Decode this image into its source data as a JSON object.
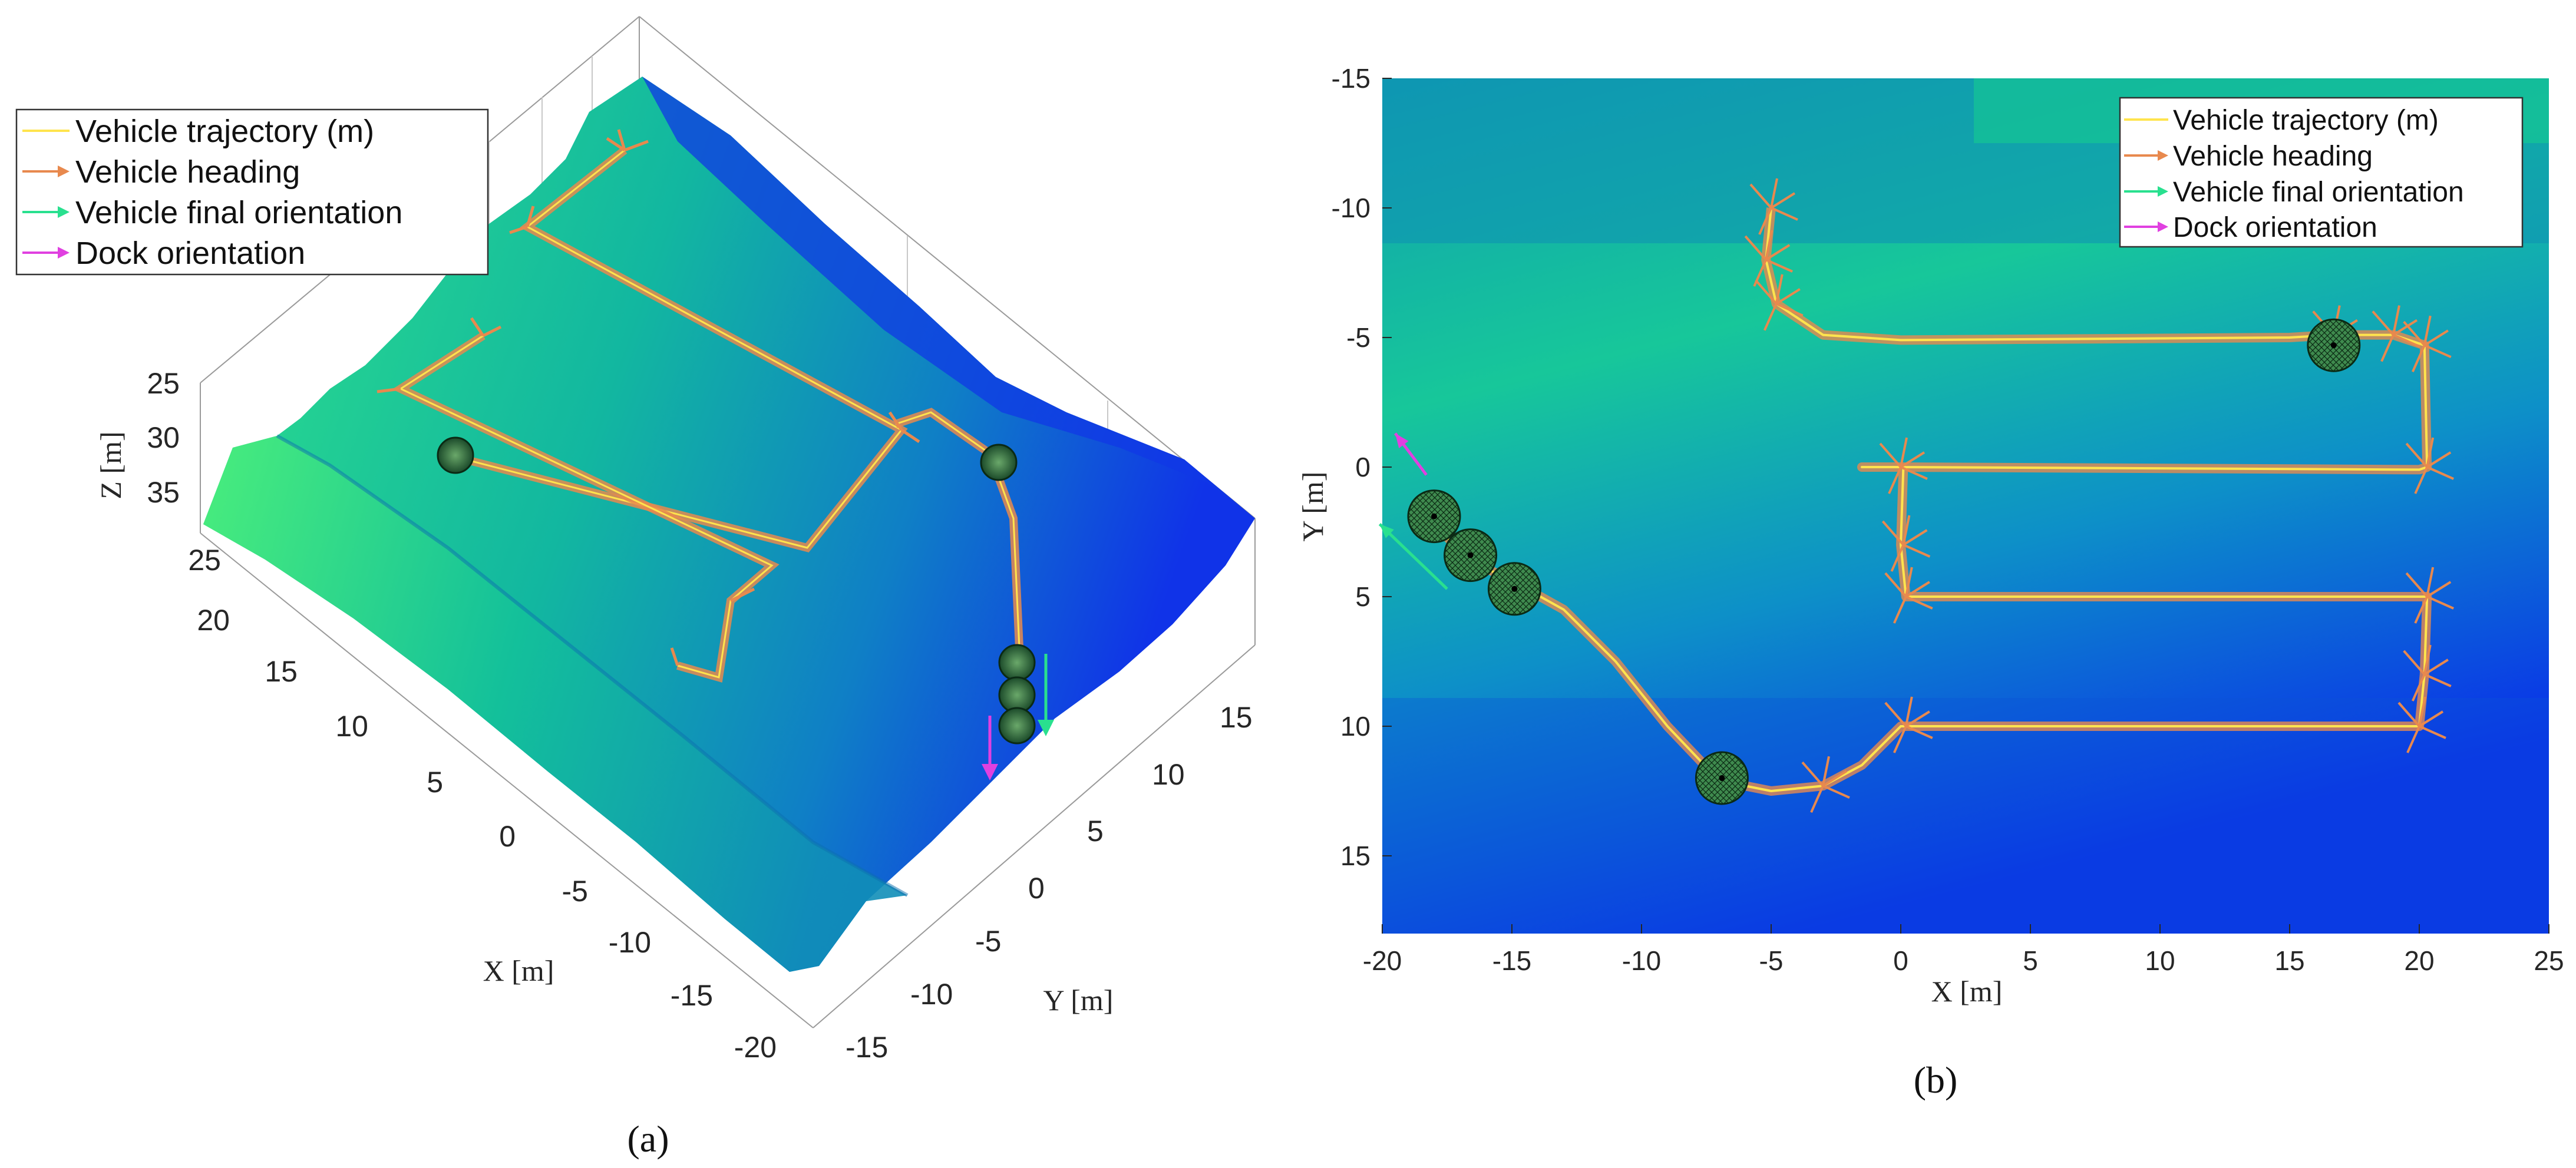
{
  "chart_data": [
    {
      "type": "surface3d",
      "panel": "a",
      "caption": "(a)",
      "xlabel": "X [m]",
      "ylabel": "Y [m]",
      "zlabel": "Z [m]",
      "x_ticks": [
        "-20",
        "-15",
        "-10",
        "-5",
        "0",
        "5",
        "10",
        "15",
        "20",
        "25"
      ],
      "y_ticks": [
        "-15",
        "-10",
        "-5",
        "0",
        "5",
        "10",
        "15"
      ],
      "z_ticks": [
        "25",
        "30",
        "35"
      ],
      "xlim": [
        -20,
        25
      ],
      "ylim": [
        -15,
        18
      ],
      "zlim": [
        25,
        37
      ],
      "z_reversed": true,
      "legend": {
        "position": "top-left",
        "entries": [
          "Vehicle trajectory (m)",
          "Vehicle heading",
          "Vehicle final orientation",
          "Dock orientation"
        ]
      },
      "colors": {
        "trajectory": "#ffe44d",
        "heading": "#e8894e",
        "final": "#29e08f",
        "dock": "#e040e0"
      }
    },
    {
      "type": "line",
      "panel": "b",
      "caption": "(b)",
      "xlabel": "X [m]",
      "ylabel": "Y [m]",
      "xlim": [
        -20,
        25
      ],
      "ylim": [
        -15,
        18
      ],
      "y_reversed": true,
      "x_ticks": [
        "-20",
        "-15",
        "-10",
        "-5",
        "0",
        "5",
        "10",
        "15",
        "20",
        "25"
      ],
      "y_ticks": [
        "-15",
        "-10",
        "-5",
        "0",
        "5",
        "10",
        "15"
      ],
      "legend": {
        "position": "top-right",
        "entries": [
          "Vehicle trajectory (m)",
          "Vehicle heading",
          "Vehicle final orientation",
          "Dock orientation"
        ]
      },
      "series": [
        {
          "name": "Vehicle trajectory (m)",
          "x": [
            -5,
            -5.2,
            -4.8,
            -3,
            0,
            15,
            16.7,
            19,
            20.2,
            20.3,
            20,
            0,
            -1.5,
            0.1,
            0,
            0.2,
            20.3,
            20.2,
            20,
            0.2,
            0,
            -1.5,
            -3,
            -5,
            -7,
            -9,
            -11,
            -13,
            -14.8,
            -16.8,
            -18.1
          ],
          "y": [
            -10,
            -8,
            -6.3,
            -5.1,
            -4.9,
            -5,
            -5.1,
            -5.1,
            -4.7,
            0,
            0.1,
            0,
            0,
            0,
            3,
            5,
            5,
            8,
            10,
            10,
            10,
            11.5,
            12.3,
            12.5,
            12.1,
            10,
            7.5,
            5.5,
            4.5,
            3.5,
            2
          ]
        }
      ],
      "docks": [
        {
          "x": 16.7,
          "y": -4.7
        },
        {
          "x": -6.9,
          "y": 12.0
        },
        {
          "x": -14.9,
          "y": 4.7
        },
        {
          "x": -16.6,
          "y": 3.4
        },
        {
          "x": -18.0,
          "y": 1.9
        }
      ],
      "dock_orientation": {
        "x": [
          -18.3,
          -19.5
        ],
        "y": [
          0.3,
          -1.3
        ]
      },
      "final_orientation": {
        "x": [
          -17.5,
          -20.1
        ],
        "y": [
          4.7,
          2.2
        ]
      },
      "colors": {
        "trajectory": "#ffe44d",
        "heading": "#e8894e",
        "final": "#29e08f",
        "dock": "#e040e0"
      }
    }
  ]
}
